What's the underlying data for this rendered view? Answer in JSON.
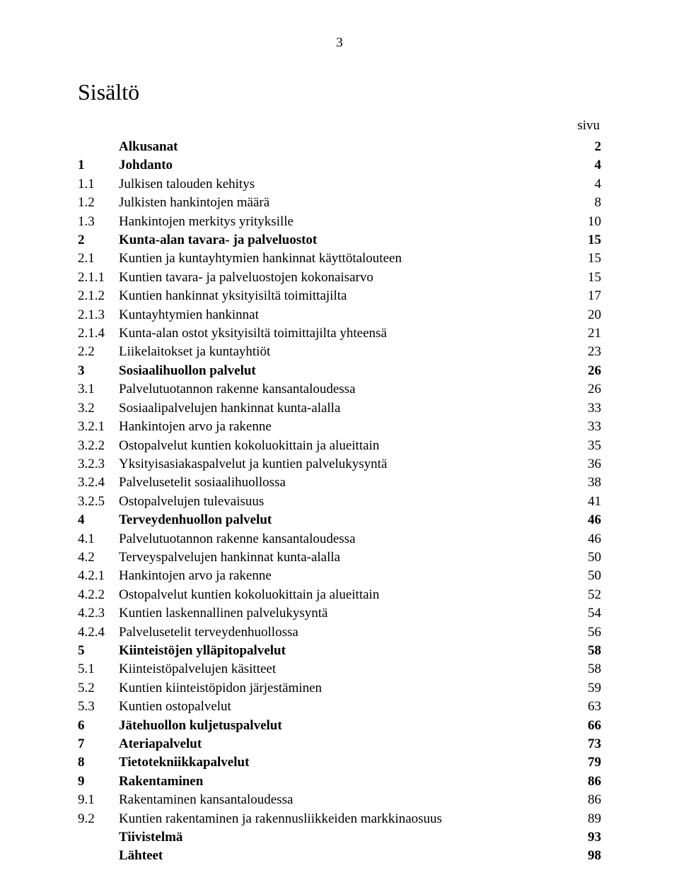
{
  "pageNumber": "3",
  "title": "Sisältö",
  "columnHeader": "sivu",
  "entries": [
    {
      "num": "",
      "text": "Alkusanat",
      "page": "2",
      "bold": true
    },
    {
      "num": "1",
      "text": "Johdanto",
      "page": "4",
      "bold": true
    },
    {
      "num": "1.1",
      "text": "Julkisen talouden kehitys",
      "page": "4",
      "bold": false
    },
    {
      "num": "1.2",
      "text": "Julkisten hankintojen määrä",
      "page": "8",
      "bold": false
    },
    {
      "num": "1.3",
      "text": "Hankintojen merkitys yrityksille",
      "page": "10",
      "bold": false
    },
    {
      "num": "2",
      "text": "Kunta-alan tavara- ja palveluostot",
      "page": "15",
      "bold": true
    },
    {
      "num": "2.1",
      "text": "Kuntien ja kuntayhtymien hankinnat käyttötalouteen",
      "page": "15",
      "bold": false
    },
    {
      "num": "2.1.1",
      "text": "Kuntien tavara- ja palveluostojen kokonaisarvo",
      "page": "15",
      "bold": false
    },
    {
      "num": "2.1.2",
      "text": "Kuntien hankinnat yksityisiltä toimittajilta",
      "page": "17",
      "bold": false
    },
    {
      "num": "2.1.3",
      "text": "Kuntayhtymien hankinnat",
      "page": "20",
      "bold": false
    },
    {
      "num": "2.1.4",
      "text": "Kunta-alan ostot yksityisiltä toimittajilta yhteensä",
      "page": "21",
      "bold": false
    },
    {
      "num": "2.2",
      "text": "Liikelaitokset ja kuntayhtiöt",
      "page": "23",
      "bold": false
    },
    {
      "num": "3",
      "text": "Sosiaalihuollon palvelut",
      "page": "26",
      "bold": true
    },
    {
      "num": "3.1",
      "text": "Palvelutuotannon rakenne kansantaloudessa",
      "page": "26",
      "bold": false
    },
    {
      "num": "3.2",
      "text": "Sosiaalipalvelujen hankinnat kunta-alalla",
      "page": "33",
      "bold": false
    },
    {
      "num": "3.2.1",
      "text": "Hankintojen arvo ja rakenne",
      "page": "33",
      "bold": false
    },
    {
      "num": "3.2.2",
      "text": "Ostopalvelut kuntien kokoluokittain ja alueittain",
      "page": "35",
      "bold": false
    },
    {
      "num": "3.2.3",
      "text": "Yksityisasiakaspalvelut ja kuntien palvelukysyntä",
      "page": "36",
      "bold": false
    },
    {
      "num": "3.2.4",
      "text": "Palvelusetelit sosiaalihuollossa",
      "page": "38",
      "bold": false
    },
    {
      "num": "3.2.5",
      "text": "Ostopalvelujen tulevaisuus",
      "page": "41",
      "bold": false
    },
    {
      "num": "4",
      "text": "Terveydenhuollon palvelut",
      "page": "46",
      "bold": true
    },
    {
      "num": "4.1",
      "text": "Palvelutuotannon rakenne kansantaloudessa",
      "page": "46",
      "bold": false
    },
    {
      "num": "4.2",
      "text": "Terveyspalvelujen hankinnat kunta-alalla",
      "page": "50",
      "bold": false
    },
    {
      "num": "4.2.1",
      "text": "Hankintojen arvo ja rakenne",
      "page": "50",
      "bold": false
    },
    {
      "num": "4.2.2",
      "text": "Ostopalvelut kuntien kokoluokittain ja alueittain",
      "page": "52",
      "bold": false
    },
    {
      "num": "4.2.3",
      "text": "Kuntien laskennallinen palvelukysyntä",
      "page": "54",
      "bold": false
    },
    {
      "num": "4.2.4",
      "text": "Palvelusetelit terveydenhuollossa",
      "page": "56",
      "bold": false
    },
    {
      "num": "5",
      "text": "Kiinteistöjen ylläpitopalvelut",
      "page": "58",
      "bold": true
    },
    {
      "num": "5.1",
      "text": "Kiinteistöpalvelujen käsitteet",
      "page": "58",
      "bold": false
    },
    {
      "num": "5.2",
      "text": "Kuntien kiinteistöpidon järjestäminen",
      "page": "59",
      "bold": false
    },
    {
      "num": "5.3",
      "text": "Kuntien ostopalvelut",
      "page": "63",
      "bold": false
    },
    {
      "num": "6",
      "text": "Jätehuollon kuljetuspalvelut",
      "page": "66",
      "bold": true
    },
    {
      "num": "7",
      "text": "Ateriapalvelut",
      "page": "73",
      "bold": true
    },
    {
      "num": "8",
      "text": "Tietotekniikkapalvelut",
      "page": "79",
      "bold": true
    },
    {
      "num": "9",
      "text": "Rakentaminen",
      "page": "86",
      "bold": true
    },
    {
      "num": "9.1",
      "text": "Rakentaminen kansantaloudessa",
      "page": "86",
      "bold": false
    },
    {
      "num": "9.2",
      "text": "Kuntien rakentaminen ja rakennusliikkeiden markkinaosuus",
      "page": "89",
      "bold": false
    },
    {
      "num": "",
      "text": "Tiivistelmä",
      "page": "93",
      "bold": true
    },
    {
      "num": "",
      "text": "Lähteet",
      "page": "98",
      "bold": true
    }
  ]
}
